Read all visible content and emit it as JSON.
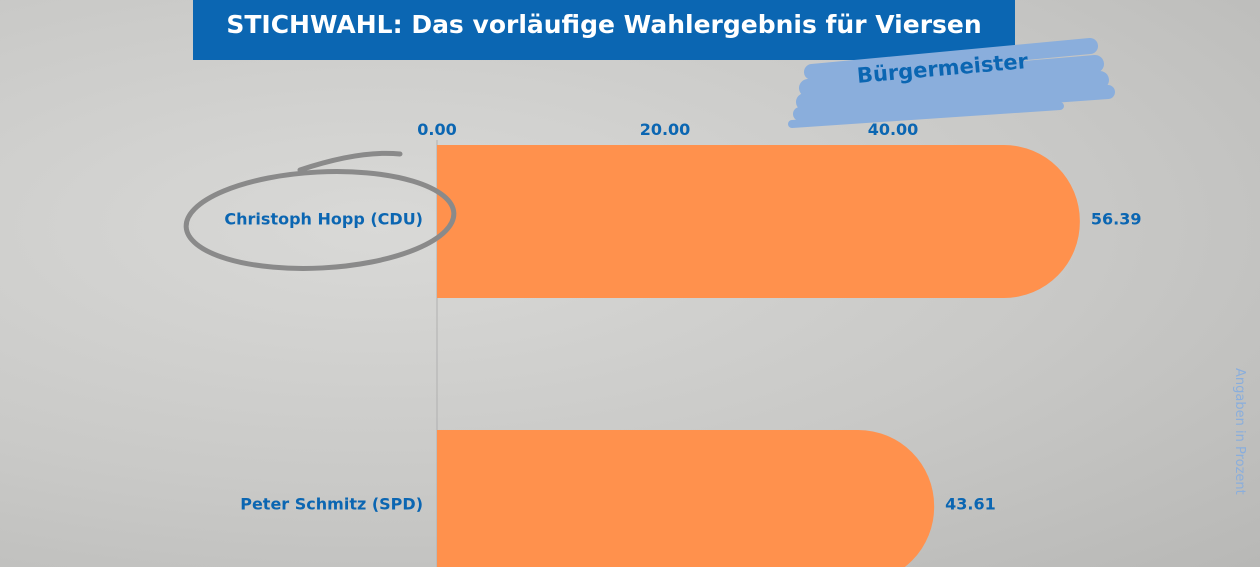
{
  "title": "STICHWAHL: Das vorläufige Wahlergebnis für Viersen",
  "subtitle": "Bürgermeister",
  "note": "Angaben in Prozent",
  "colors": {
    "title_bg": "#0b66b2",
    "bar": "#ff914d",
    "label": "#0b66b2",
    "brush": "#8aaedc"
  },
  "chart_data": {
    "type": "bar",
    "orientation": "horizontal",
    "title": "STICHWAHL: Das vorläufige Wahlergebnis für Viersen",
    "subtitle": "Bürgermeister",
    "categories": [
      "Christoph Hopp (CDU)",
      "Peter Schmitz (SPD)"
    ],
    "values": [
      56.39,
      43.61
    ],
    "value_labels": [
      "56.39",
      "43.61"
    ],
    "xticks": [
      "0.00",
      "20.00",
      "40.00"
    ],
    "xtick_values": [
      0,
      20,
      40
    ],
    "xlabel": "Angaben in Prozent",
    "xlim": [
      0,
      60
    ],
    "highlighted": "Christoph Hopp (CDU)"
  }
}
